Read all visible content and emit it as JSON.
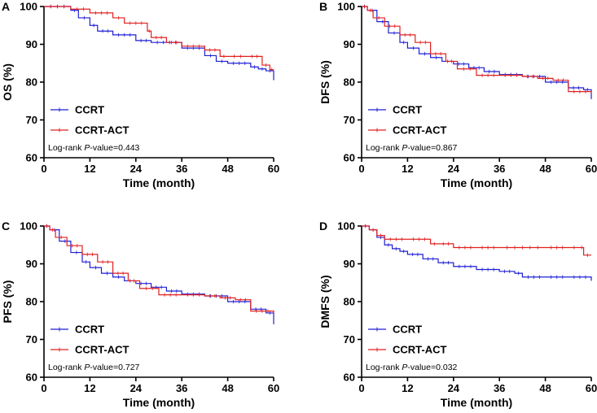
{
  "chart_data": [
    {
      "type": "line",
      "panel": "A",
      "ylabel": "OS (%)",
      "xlabel": "Time (month)",
      "xlim": [
        0,
        60
      ],
      "ylim": [
        60,
        100
      ],
      "xticks": [
        "0",
        "12",
        "24",
        "36",
        "48",
        "60"
      ],
      "yticks": [
        "60",
        "70",
        "80",
        "90",
        "100"
      ],
      "pvalue_prefix": "Log-rank ",
      "pvalue_italic": "P",
      "pvalue_suffix": "-value=0.443",
      "legend_position": "bottom-left",
      "series": [
        {
          "name": "CCRT",
          "color": "#1f1fd6",
          "x": [
            0,
            7,
            9,
            12,
            14,
            18,
            24,
            28,
            36,
            42,
            45,
            48,
            54,
            56,
            58,
            60
          ],
          "y": [
            100,
            99,
            97,
            95,
            93.5,
            92.5,
            91,
            90.5,
            89,
            87,
            85.5,
            85,
            84,
            83.5,
            83,
            80.5
          ]
        },
        {
          "name": "CCRT-ACT",
          "color": "#e02020",
          "x": [
            0,
            7,
            12,
            18,
            21,
            27,
            28,
            32,
            36,
            42,
            46,
            48,
            53,
            57,
            59,
            60
          ],
          "y": [
            100,
            99.3,
            98.3,
            97,
            95.6,
            93.5,
            91.8,
            90.5,
            89.5,
            88.5,
            86.8,
            86.8,
            86.8,
            84.5,
            83.3,
            83.3
          ]
        }
      ]
    },
    {
      "type": "line",
      "panel": "B",
      "ylabel": "DFS (%)",
      "xlabel": "Time (month)",
      "xlim": [
        0,
        60
      ],
      "ylim": [
        60,
        100
      ],
      "xticks": [
        "0",
        "12",
        "24",
        "36",
        "48",
        "60"
      ],
      "yticks": [
        "60",
        "70",
        "80",
        "90",
        "100"
      ],
      "pvalue_prefix": "Log-rank ",
      "pvalue_italic": "P",
      "pvalue_suffix": "-value=0.867",
      "legend_position": "bottom-left",
      "series": [
        {
          "name": "CCRT",
          "color": "#1f1fd6",
          "x": [
            0,
            1.5,
            4,
            7,
            10,
            12,
            15,
            18,
            21,
            24,
            28,
            32,
            36,
            42,
            48,
            54,
            58,
            60
          ],
          "y": [
            100,
            99,
            96,
            93,
            90.5,
            89,
            87.5,
            86.5,
            85.5,
            84.8,
            83.8,
            82.8,
            82,
            81.5,
            80,
            78.5,
            78,
            75.5
          ]
        },
        {
          "name": "CCRT-ACT",
          "color": "#e02020",
          "x": [
            0,
            1.5,
            3,
            6,
            10,
            14,
            18,
            22,
            25,
            30,
            36,
            42,
            46,
            50,
            54,
            60
          ],
          "y": [
            100,
            99,
            97,
            94.8,
            92.5,
            90.5,
            87.5,
            85.5,
            83.5,
            81.8,
            81.8,
            81.5,
            81,
            80.5,
            77.5,
            77
          ]
        }
      ]
    },
    {
      "type": "line",
      "panel": "C",
      "ylabel": "PFS (%)",
      "xlabel": "Time (month)",
      "xlim": [
        0,
        60
      ],
      "ylim": [
        60,
        100
      ],
      "xticks": [
        "0",
        "12",
        "24",
        "36",
        "48",
        "60"
      ],
      "yticks": [
        "60",
        "70",
        "80",
        "90",
        "100"
      ],
      "pvalue_prefix": "Log-rank ",
      "pvalue_italic": "P",
      "pvalue_suffix": "-value=0.727",
      "legend_position": "bottom-left",
      "series": [
        {
          "name": "CCRT",
          "color": "#1f1fd6",
          "x": [
            0,
            1.5,
            4,
            7,
            10,
            12,
            15,
            18,
            21,
            24,
            28,
            32,
            36,
            42,
            48,
            54,
            58,
            60
          ],
          "y": [
            100,
            99,
            96,
            93,
            90.5,
            89,
            87.5,
            86.5,
            85.5,
            84.8,
            83.8,
            82.8,
            82,
            81.5,
            80,
            78,
            77,
            74
          ]
        },
        {
          "name": "CCRT-ACT",
          "color": "#e02020",
          "x": [
            0,
            1.5,
            3,
            6,
            10,
            14,
            18,
            22,
            25,
            30,
            36,
            42,
            46,
            50,
            54,
            60
          ],
          "y": [
            100,
            99,
            97,
            94.8,
            92.5,
            90.5,
            87.5,
            85.5,
            83.5,
            81.8,
            81.8,
            81.5,
            81,
            80.5,
            77.5,
            77
          ]
        }
      ]
    },
    {
      "type": "line",
      "panel": "D",
      "ylabel": "DMFS (%)",
      "xlabel": "Time (month)",
      "xlim": [
        0,
        60
      ],
      "ylim": [
        60,
        100
      ],
      "xticks": [
        "0",
        "12",
        "24",
        "36",
        "48",
        "60"
      ],
      "yticks": [
        "60",
        "70",
        "80",
        "90",
        "100"
      ],
      "pvalue_prefix": "Log-rank ",
      "pvalue_italic": "P",
      "pvalue_suffix": "-value=0.032",
      "legend_position": "bottom-left",
      "series": [
        {
          "name": "CCRT",
          "color": "#1f1fd6",
          "x": [
            0,
            2,
            4,
            6,
            8,
            10,
            12,
            16,
            20,
            24,
            30,
            36,
            40,
            42,
            48,
            54,
            60
          ],
          "y": [
            100,
            99,
            97,
            95,
            94,
            93.3,
            92.5,
            91.3,
            90.3,
            89.3,
            88.5,
            88,
            87.5,
            86.5,
            86.5,
            86.5,
            85.5
          ]
        },
        {
          "name": "CCRT-ACT",
          "color": "#e02020",
          "x": [
            0,
            2,
            4,
            6,
            12,
            18,
            20,
            24,
            30,
            36,
            48,
            54,
            57,
            58,
            60
          ],
          "y": [
            100,
            99,
            97.5,
            96.5,
            96.5,
            95.3,
            95.3,
            94.3,
            94.3,
            94.3,
            94.3,
            94.3,
            94.3,
            92.3,
            92.3
          ]
        }
      ]
    }
  ]
}
